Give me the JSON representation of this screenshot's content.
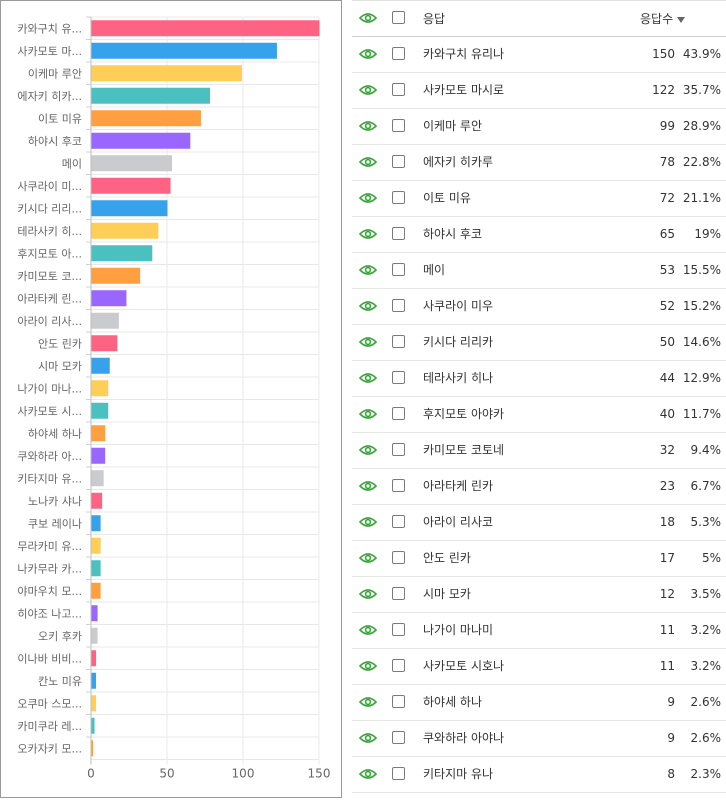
{
  "colors": {
    "bar_palette": [
      "#ff6384",
      "#36a2eb",
      "#ffce56",
      "#4bc0c0",
      "#ff9f40",
      "#9966ff",
      "#c9cbcf"
    ],
    "eye_icon": "#3aa53a"
  },
  "chart_data": {
    "type": "bar",
    "orientation": "horizontal",
    "categories": [
      "카와구치 유...",
      "사카모토 마...",
      "이케마 루안",
      "에자키 히카...",
      "이토 미유",
      "하야시 후코",
      "메이",
      "사쿠라이 미...",
      "키시다 리리...",
      "테라사키 히...",
      "후지모토 아...",
      "카미모토 코...",
      "아라타케 린...",
      "아라이 리사...",
      "안도 린카",
      "시마 모카",
      "나가이 마나...",
      "사카모토 시...",
      "하야세 하나",
      "쿠와하라 아...",
      "키타지마 유...",
      "노나카 샤나",
      "쿠보 레이나",
      "무라카미 유...",
      "나카무라 카...",
      "야마우치 모...",
      "히야조 나고...",
      "오키 후카",
      "이나바 비비...",
      "칸노 미유",
      "오쿠마 스모...",
      "카미쿠라 레...",
      "오카자키 모..."
    ],
    "values": [
      150,
      122,
      99,
      78,
      72,
      65,
      53,
      52,
      50,
      44,
      40,
      32,
      23,
      18,
      17,
      12,
      11,
      11,
      9,
      9,
      8,
      7,
      6,
      6,
      6,
      6,
      4,
      4,
      3,
      3,
      3,
      2,
      1
    ],
    "x_ticks": [
      0,
      50,
      100,
      150
    ],
    "xlim": [
      0,
      150
    ],
    "grid": true,
    "legend": "none"
  },
  "table": {
    "headers": {
      "answer": "응답",
      "count": "응답수"
    },
    "rows": [
      {
        "name": "카와구치 유리나",
        "count": "150",
        "pct": "43.9%"
      },
      {
        "name": "사카모토 마시로",
        "count": "122",
        "pct": "35.7%"
      },
      {
        "name": "이케마 루안",
        "count": "99",
        "pct": "28.9%"
      },
      {
        "name": "에자키 히카루",
        "count": "78",
        "pct": "22.8%"
      },
      {
        "name": "이토 미유",
        "count": "72",
        "pct": "21.1%"
      },
      {
        "name": "하야시 후코",
        "count": "65",
        "pct": "19%"
      },
      {
        "name": "메이",
        "count": "53",
        "pct": "15.5%"
      },
      {
        "name": "사쿠라이 미우",
        "count": "52",
        "pct": "15.2%"
      },
      {
        "name": "키시다 리리카",
        "count": "50",
        "pct": "14.6%"
      },
      {
        "name": "테라사키 히나",
        "count": "44",
        "pct": "12.9%"
      },
      {
        "name": "후지모토 아야카",
        "count": "40",
        "pct": "11.7%"
      },
      {
        "name": "카미모토 코토네",
        "count": "32",
        "pct": "9.4%"
      },
      {
        "name": "아라타케 린카",
        "count": "23",
        "pct": "6.7%"
      },
      {
        "name": "아라이 리사코",
        "count": "18",
        "pct": "5.3%"
      },
      {
        "name": "안도 린카",
        "count": "17",
        "pct": "5%"
      },
      {
        "name": "시마 모카",
        "count": "12",
        "pct": "3.5%"
      },
      {
        "name": "나가이 마나미",
        "count": "11",
        "pct": "3.2%"
      },
      {
        "name": "사카모토 시호나",
        "count": "11",
        "pct": "3.2%"
      },
      {
        "name": "하야세 하나",
        "count": "9",
        "pct": "2.6%"
      },
      {
        "name": "쿠와하라 아야나",
        "count": "9",
        "pct": "2.6%"
      },
      {
        "name": "키타지마 유나",
        "count": "8",
        "pct": "2.3%"
      }
    ]
  }
}
